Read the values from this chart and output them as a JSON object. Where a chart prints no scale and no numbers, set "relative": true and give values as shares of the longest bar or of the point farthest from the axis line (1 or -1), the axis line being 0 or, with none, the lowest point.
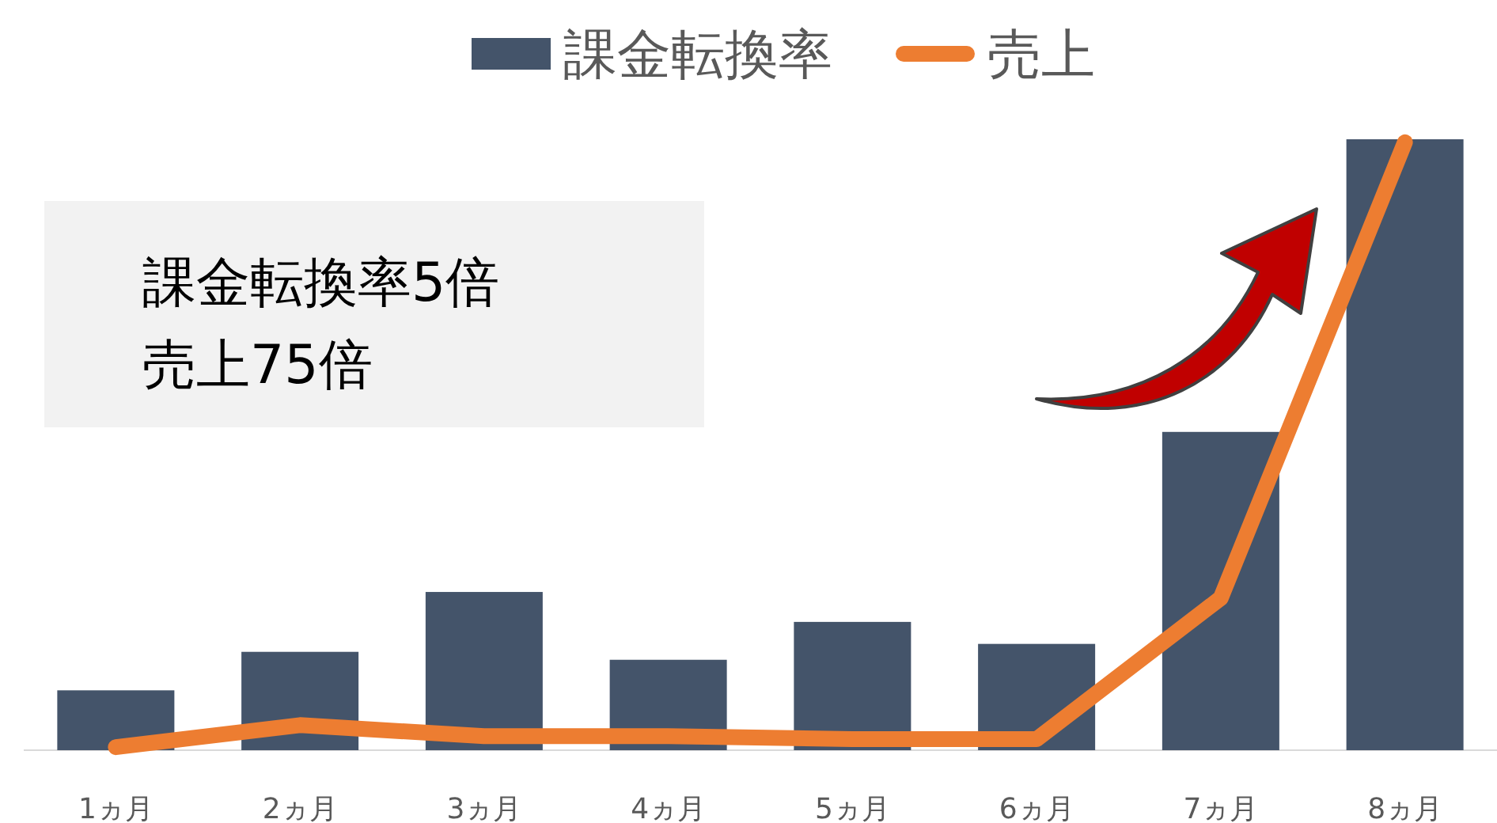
{
  "chart_data": {
    "type": "bar",
    "relative": true,
    "legend": "top",
    "grid": false,
    "categories": [
      "1ヵ月",
      "2ヵ月",
      "3ヵ月",
      "4ヵ月",
      "5ヵ月",
      "6ヵ月",
      "7ヵ月",
      "8ヵ月"
    ],
    "series": [
      {
        "name": "課金転換率",
        "color": "#44546a",
        "values": [
          0.098,
          0.161,
          0.259,
          0.148,
          0.21,
          0.174,
          0.521,
          1
        ]
      },
      {
        "name": "売上",
        "color": "#ed7d31",
        "type": "line",
        "values": [
          0.005,
          0.041,
          0.023,
          0.023,
          0.018,
          0.018,
          0.249,
          0.995
        ]
      }
    ],
    "annotations": [
      "課金転換率5倍",
      "売上75倍"
    ]
  }
}
